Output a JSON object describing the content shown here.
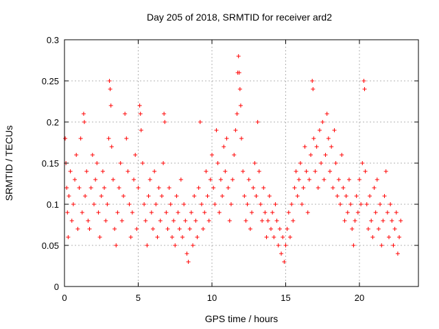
{
  "chart_data": {
    "type": "scatter",
    "title": "Day 205 of 2018, SRMTID for receiver ard2",
    "xlabel": "GPS time / hours",
    "ylabel": "SRMTID / TECUs",
    "xlim": [
      0,
      24
    ],
    "ylim": [
      0,
      0.3
    ],
    "xticks": [
      0,
      5,
      10,
      15,
      20
    ],
    "xtick_labels": [
      "0",
      "5",
      "10",
      "15",
      "20"
    ],
    "yticks": [
      0,
      0.05,
      0.1,
      0.15,
      0.2,
      0.25,
      0.3
    ],
    "ytick_labels": [
      "0",
      "0.05",
      "0.1",
      "0.15",
      "0.2",
      "0.25",
      "0.3"
    ],
    "grid": true,
    "marker": "+",
    "series": [
      {
        "name": "SRMTID",
        "color": "#ff0000",
        "points": [
          [
            0.05,
            0.18
          ],
          [
            0.1,
            0.15
          ],
          [
            0.15,
            0.12
          ],
          [
            0.2,
            0.09
          ],
          [
            0.25,
            0.06
          ],
          [
            0.3,
            0.11
          ],
          [
            0.4,
            0.14
          ],
          [
            0.5,
            0.08
          ],
          [
            0.6,
            0.1
          ],
          [
            0.7,
            0.13
          ],
          [
            0.8,
            0.16
          ],
          [
            0.9,
            0.07
          ],
          [
            1.0,
            0.12
          ],
          [
            1.1,
            0.18
          ],
          [
            1.2,
            0.09
          ],
          [
            1.3,
            0.21
          ],
          [
            1.35,
            0.2
          ],
          [
            1.4,
            0.11
          ],
          [
            1.5,
            0.14
          ],
          [
            1.6,
            0.08
          ],
          [
            1.7,
            0.07
          ],
          [
            1.8,
            0.12
          ],
          [
            1.9,
            0.16
          ],
          [
            2.0,
            0.1
          ],
          [
            2.1,
            0.13
          ],
          [
            2.2,
            0.15
          ],
          [
            2.3,
            0.09
          ],
          [
            2.4,
            0.06
          ],
          [
            2.5,
            0.11
          ],
          [
            2.6,
            0.14
          ],
          [
            2.7,
            0.12
          ],
          [
            2.8,
            0.08
          ],
          [
            2.9,
            0.1
          ],
          [
            3.0,
            0.18
          ],
          [
            3.05,
            0.25
          ],
          [
            3.1,
            0.24
          ],
          [
            3.15,
            0.22
          ],
          [
            3.2,
            0.17
          ],
          [
            3.3,
            0.13
          ],
          [
            3.4,
            0.07
          ],
          [
            3.5,
            0.05
          ],
          [
            3.6,
            0.09
          ],
          [
            3.7,
            0.12
          ],
          [
            3.8,
            0.15
          ],
          [
            3.9,
            0.08
          ],
          [
            4.0,
            0.11
          ],
          [
            4.1,
            0.21
          ],
          [
            4.2,
            0.18
          ],
          [
            4.3,
            0.14
          ],
          [
            4.4,
            0.1
          ],
          [
            4.5,
            0.06
          ],
          [
            4.6,
            0.09
          ],
          [
            4.7,
            0.13
          ],
          [
            4.8,
            0.16
          ],
          [
            4.9,
            0.07
          ],
          [
            5.0,
            0.12
          ],
          [
            5.1,
            0.22
          ],
          [
            5.15,
            0.21
          ],
          [
            5.2,
            0.19
          ],
          [
            5.3,
            0.15
          ],
          [
            5.4,
            0.1
          ],
          [
            5.5,
            0.08
          ],
          [
            5.6,
            0.05
          ],
          [
            5.7,
            0.11
          ],
          [
            5.8,
            0.13
          ],
          [
            5.9,
            0.09
          ],
          [
            6.0,
            0.07
          ],
          [
            6.1,
            0.14
          ],
          [
            6.2,
            0.1
          ],
          [
            6.3,
            0.06
          ],
          [
            6.4,
            0.12
          ],
          [
            6.5,
            0.08
          ],
          [
            6.6,
            0.11
          ],
          [
            6.7,
            0.15
          ],
          [
            6.75,
            0.21
          ],
          [
            6.8,
            0.2
          ],
          [
            6.9,
            0.09
          ],
          [
            7.0,
            0.07
          ],
          [
            7.1,
            0.12
          ],
          [
            7.2,
            0.1
          ],
          [
            7.3,
            0.06
          ],
          [
            7.4,
            0.08
          ],
          [
            7.5,
            0.05
          ],
          [
            7.6,
            0.11
          ],
          [
            7.7,
            0.09
          ],
          [
            7.8,
            0.07
          ],
          [
            7.9,
            0.13
          ],
          [
            8.0,
            0.06
          ],
          [
            8.1,
            0.1
          ],
          [
            8.2,
            0.08
          ],
          [
            8.3,
            0.04
          ],
          [
            8.4,
            0.03
          ],
          [
            8.5,
            0.07
          ],
          [
            8.6,
            0.09
          ],
          [
            8.7,
            0.05
          ],
          [
            8.8,
            0.11
          ],
          [
            8.9,
            0.08
          ],
          [
            9.0,
            0.06
          ],
          [
            9.1,
            0.12
          ],
          [
            9.2,
            0.2
          ],
          [
            9.3,
            0.1
          ],
          [
            9.4,
            0.07
          ],
          [
            9.5,
            0.09
          ],
          [
            9.6,
            0.14
          ],
          [
            9.7,
            0.11
          ],
          [
            9.8,
            0.08
          ],
          [
            9.9,
            0.13
          ],
          [
            10.0,
            0.16
          ],
          [
            10.1,
            0.12
          ],
          [
            10.2,
            0.1
          ],
          [
            10.3,
            0.19
          ],
          [
            10.4,
            0.15
          ],
          [
            10.5,
            0.09
          ],
          [
            10.6,
            0.13
          ],
          [
            10.7,
            0.11
          ],
          [
            10.8,
            0.17
          ],
          [
            10.9,
            0.14
          ],
          [
            11.0,
            0.18
          ],
          [
            11.1,
            0.12
          ],
          [
            11.2,
            0.08
          ],
          [
            11.3,
            0.1
          ],
          [
            11.4,
            0.13
          ],
          [
            11.5,
            0.16
          ],
          [
            11.6,
            0.19
          ],
          [
            11.7,
            0.21
          ],
          [
            11.75,
            0.26
          ],
          [
            11.8,
            0.28
          ],
          [
            11.85,
            0.26
          ],
          [
            11.9,
            0.24
          ],
          [
            11.95,
            0.22
          ],
          [
            12.0,
            0.18
          ],
          [
            12.1,
            0.14
          ],
          [
            12.2,
            0.11
          ],
          [
            12.3,
            0.08
          ],
          [
            12.4,
            0.1
          ],
          [
            12.5,
            0.13
          ],
          [
            12.6,
            0.07
          ],
          [
            12.7,
            0.09
          ],
          [
            12.8,
            0.12
          ],
          [
            12.9,
            0.15
          ],
          [
            13.0,
            0.11
          ],
          [
            13.1,
            0.2
          ],
          [
            13.2,
            0.14
          ],
          [
            13.3,
            0.1
          ],
          [
            13.4,
            0.08
          ],
          [
            13.5,
            0.12
          ],
          [
            13.6,
            0.09
          ],
          [
            13.7,
            0.06
          ],
          [
            13.8,
            0.08
          ],
          [
            13.9,
            0.11
          ],
          [
            14.0,
            0.07
          ],
          [
            14.1,
            0.09
          ],
          [
            14.2,
            0.06
          ],
          [
            14.3,
            0.1
          ],
          [
            14.4,
            0.08
          ],
          [
            14.5,
            0.05
          ],
          [
            14.6,
            0.07
          ],
          [
            14.7,
            0.04
          ],
          [
            14.8,
            0.06
          ],
          [
            14.9,
            0.03
          ],
          [
            15.0,
            0.05
          ],
          [
            15.1,
            0.07
          ],
          [
            15.2,
            0.09
          ],
          [
            15.3,
            0.06
          ],
          [
            15.4,
            0.1
          ],
          [
            15.5,
            0.08
          ],
          [
            15.6,
            0.12
          ],
          [
            15.7,
            0.14
          ],
          [
            15.8,
            0.11
          ],
          [
            15.9,
            0.13
          ],
          [
            16.0,
            0.15
          ],
          [
            16.1,
            0.1
          ],
          [
            16.2,
            0.12
          ],
          [
            16.3,
            0.17
          ],
          [
            16.4,
            0.14
          ],
          [
            16.5,
            0.09
          ],
          [
            16.6,
            0.13
          ],
          [
            16.7,
            0.16
          ],
          [
            16.8,
            0.25
          ],
          [
            16.85,
            0.24
          ],
          [
            16.9,
            0.18
          ],
          [
            17.0,
            0.14
          ],
          [
            17.1,
            0.17
          ],
          [
            17.2,
            0.12
          ],
          [
            17.3,
            0.19
          ],
          [
            17.4,
            0.15
          ],
          [
            17.5,
            0.2
          ],
          [
            17.6,
            0.13
          ],
          [
            17.7,
            0.16
          ],
          [
            17.8,
            0.21
          ],
          [
            17.9,
            0.18
          ],
          [
            18.0,
            0.14
          ],
          [
            18.1,
            0.17
          ],
          [
            18.2,
            0.12
          ],
          [
            18.3,
            0.19
          ],
          [
            18.4,
            0.15
          ],
          [
            18.5,
            0.11
          ],
          [
            18.6,
            0.13
          ],
          [
            18.7,
            0.1
          ],
          [
            18.8,
            0.16
          ],
          [
            18.9,
            0.12
          ],
          [
            19.0,
            0.08
          ],
          [
            19.1,
            0.11
          ],
          [
            19.2,
            0.09
          ],
          [
            19.3,
            0.13
          ],
          [
            19.4,
            0.1
          ],
          [
            19.5,
            0.07
          ],
          [
            19.6,
            0.05
          ],
          [
            19.7,
            0.08
          ],
          [
            19.8,
            0.11
          ],
          [
            19.9,
            0.09
          ],
          [
            20.0,
            0.13
          ],
          [
            20.1,
            0.1
          ],
          [
            20.2,
            0.15
          ],
          [
            20.3,
            0.25
          ],
          [
            20.35,
            0.24
          ],
          [
            20.4,
            0.14
          ],
          [
            20.5,
            0.1
          ],
          [
            20.6,
            0.07
          ],
          [
            20.7,
            0.11
          ],
          [
            20.8,
            0.08
          ],
          [
            20.9,
            0.06
          ],
          [
            21.0,
            0.12
          ],
          [
            21.1,
            0.09
          ],
          [
            21.2,
            0.13
          ],
          [
            21.3,
            0.07
          ],
          [
            21.4,
            0.1
          ],
          [
            21.5,
            0.05
          ],
          [
            21.6,
            0.08
          ],
          [
            21.7,
            0.11
          ],
          [
            21.8,
            0.14
          ],
          [
            21.9,
            0.09
          ],
          [
            22.0,
            0.06
          ],
          [
            22.1,
            0.1
          ],
          [
            22.2,
            0.08
          ],
          [
            22.3,
            0.05
          ],
          [
            22.4,
            0.07
          ],
          [
            22.5,
            0.09
          ],
          [
            22.6,
            0.04
          ],
          [
            22.7,
            0.06
          ],
          [
            22.8,
            0.08
          ]
        ]
      }
    ]
  }
}
